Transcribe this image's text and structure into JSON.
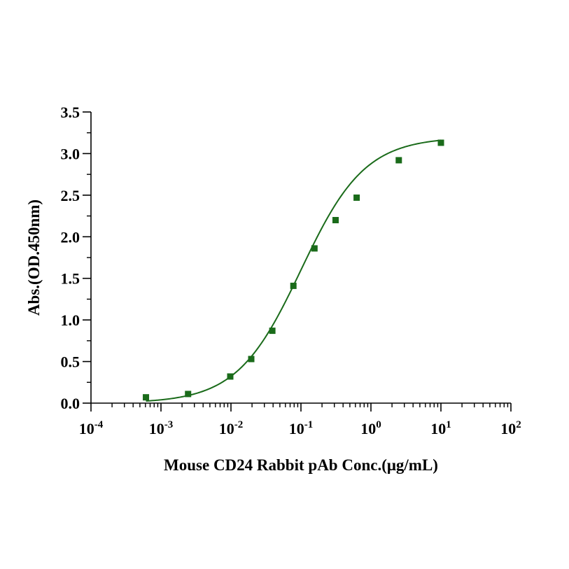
{
  "chart_data": {
    "type": "scatter",
    "title": "",
    "xlabel": "Mouse CD24 Rabbit pAb Conc.(μg/mL)",
    "ylabel": "Abs.(OD.450nm)",
    "xscale": "log",
    "xlim": [
      0.0001,
      100
    ],
    "ylim": [
      0,
      3.5
    ],
    "x_ticks": [
      {
        "base": "10",
        "exp": "-4",
        "value": 0.0001
      },
      {
        "base": "10",
        "exp": "-3",
        "value": 0.001
      },
      {
        "base": "10",
        "exp": "-2",
        "value": 0.01
      },
      {
        "base": "10",
        "exp": "-1",
        "value": 0.1
      },
      {
        "base": "10",
        "exp": "0",
        "value": 1
      },
      {
        "base": "10",
        "exp": "1",
        "value": 10
      },
      {
        "base": "10",
        "exp": "2",
        "value": 100
      }
    ],
    "y_ticks": [
      "0.0",
      "0.5",
      "1.0",
      "1.5",
      "2.0",
      "2.5",
      "3.0",
      "3.5"
    ],
    "grid": false,
    "color": "#1a6b1a",
    "marker": "square",
    "series": [
      {
        "x": [
          0.00061,
          0.00244,
          0.00977,
          0.0195,
          0.039,
          0.078,
          0.156,
          0.3125,
          0.625,
          2.5,
          10
        ],
        "y": [
          0.07,
          0.11,
          0.32,
          0.53,
          0.87,
          1.41,
          1.86,
          2.2,
          2.47,
          2.92,
          3.13
        ]
      }
    ],
    "fit": {
      "model": "4PL",
      "bottom": 0.0,
      "top": 3.2,
      "ec50": 0.1,
      "hill": 0.95,
      "x_range": [
        0.00061,
        10
      ]
    }
  }
}
